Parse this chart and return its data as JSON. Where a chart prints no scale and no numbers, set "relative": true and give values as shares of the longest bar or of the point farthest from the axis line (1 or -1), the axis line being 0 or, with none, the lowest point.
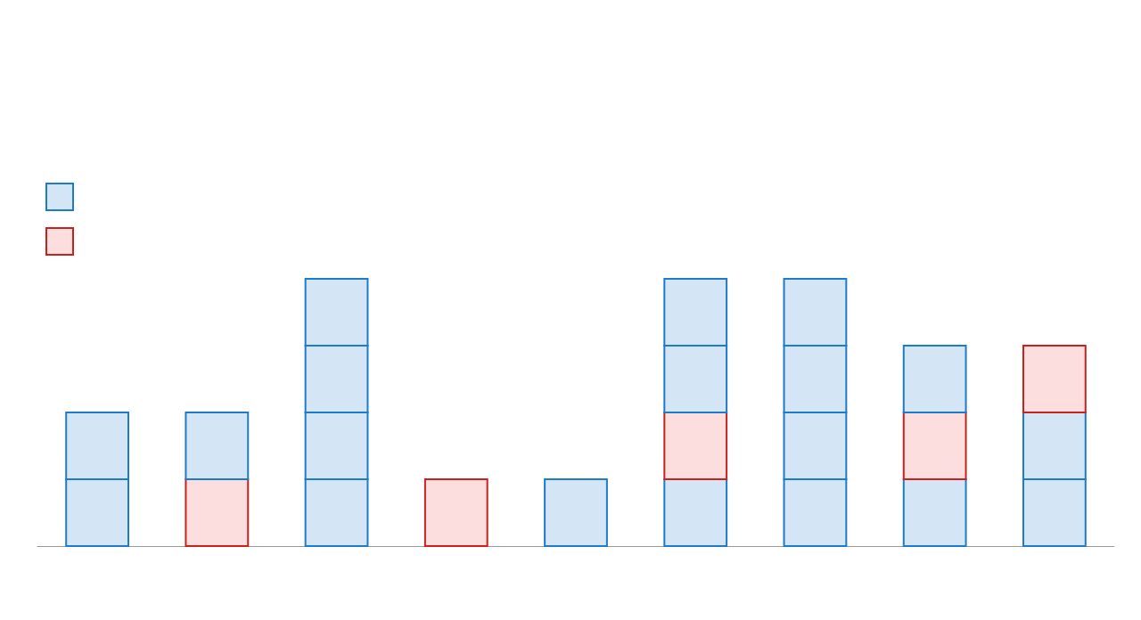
{
  "chart_data": {
    "type": "bar",
    "relative": true,
    "stacked": true,
    "categories": [
      null,
      null,
      null,
      null,
      null,
      null,
      null,
      null,
      null
    ],
    "series": [
      {
        "values": [
          0.25,
          0.25,
          0.25,
          0.25,
          0.25,
          0.25,
          0.25,
          0.25,
          0.25
        ],
        "colors": [
          "#d4e6f5",
          "#fbdedd",
          "#d4e6f5",
          "#fbdedd",
          "#d4e6f5",
          "#d4e6f5",
          "#d4e6f5",
          "#d4e6f5",
          "#d4e6f5"
        ]
      },
      {
        "values": [
          0.25,
          0.25,
          0.25,
          null,
          null,
          0.25,
          0.25,
          0.25,
          0.25
        ],
        "colors": [
          "#d4e6f5",
          "#d4e6f5",
          "#d4e6f5",
          null,
          null,
          "#fbdedd",
          "#d4e6f5",
          "#fbdedd",
          "#d4e6f5"
        ]
      },
      {
        "values": [
          null,
          null,
          0.25,
          null,
          null,
          0.25,
          0.25,
          0.25,
          0.25
        ],
        "colors": [
          null,
          null,
          "#d4e6f5",
          null,
          null,
          "#d4e6f5",
          "#d4e6f5",
          "#d4e6f5",
          "#fbdedd"
        ]
      },
      {
        "values": [
          null,
          null,
          0.25,
          null,
          null,
          0.25,
          0.25,
          null,
          null
        ],
        "colors": [
          null,
          null,
          "#d4e6f5",
          null,
          null,
          "#d4e6f5",
          "#d4e6f5",
          null,
          null
        ]
      }
    ]
  }
}
